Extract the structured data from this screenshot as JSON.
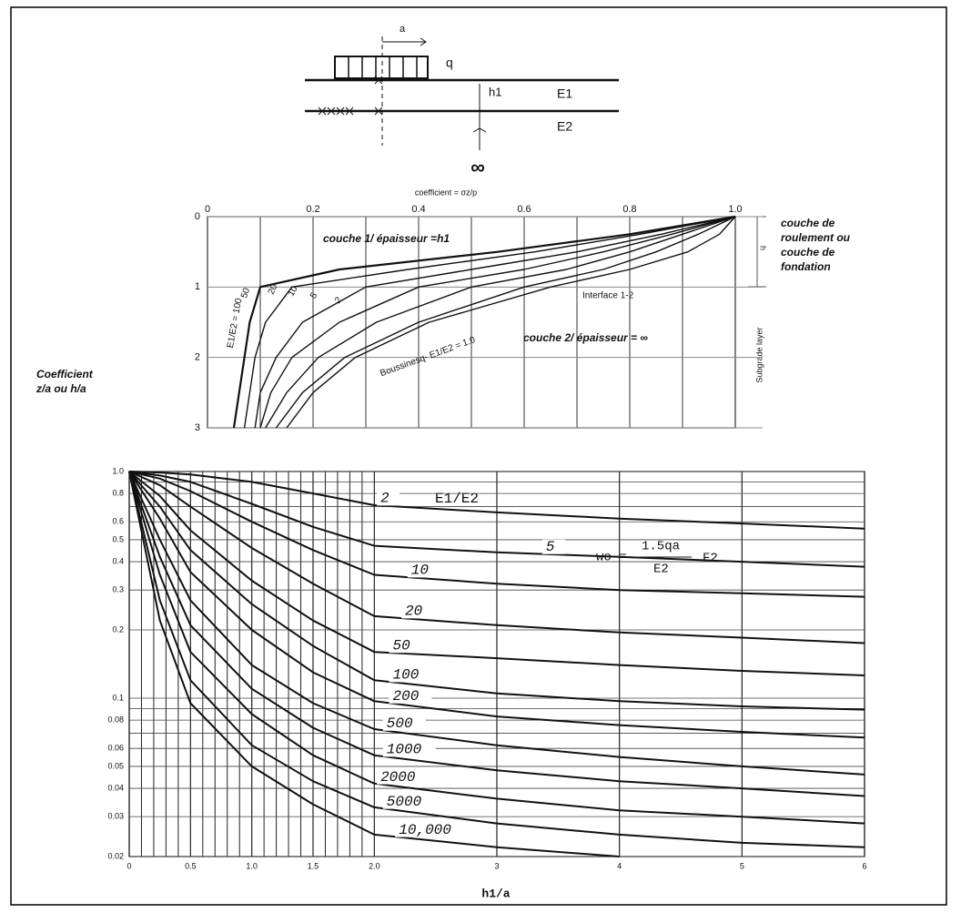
{
  "diagram": {
    "load_width": "a",
    "load": "q",
    "thickness": "h1",
    "layer1": "E1",
    "layer2": "E2",
    "depth": "∞"
  },
  "chart_data": [
    {
      "type": "line",
      "xlabel": "coefficient = σz/p",
      "ylabel": [
        "Coefficient",
        "z/a ou h/a"
      ],
      "side_label": [
        "couche de",
        "roulement ou",
        "couche de",
        "fondation"
      ],
      "side_thickness": "h",
      "subgrade_label": "Subgrade layer",
      "annotations": [
        "couche 1/ épaisseur =h1",
        "Interface 1-2",
        "couche 2/ épaisseur = ∞"
      ],
      "xlim": [
        0,
        1
      ],
      "xticks": [
        0,
        0.2,
        0.4,
        0.6,
        0.8,
        {
          "value": 1,
          "label": "1.0"
        }
      ],
      "xminorticks": [
        0.1,
        0.3,
        0.5,
        0.7,
        0.9
      ],
      "ylim": [
        0,
        3
      ],
      "yticks": [
        0,
        1,
        2,
        3
      ],
      "y_inverted": true,
      "grid": true,
      "color": "#111111",
      "z": [
        0,
        0.25,
        0.5,
        0.75,
        1,
        1.5,
        2,
        2.5,
        3
      ],
      "series": [
        {
          "name": "E1/E2 = 100",
          "values": [
            1,
            0.8,
            0.55,
            0.25,
            0.1,
            0.08,
            0.07,
            0.06,
            0.05
          ]
        },
        {
          "name": "50",
          "values": [
            1,
            0.82,
            0.62,
            0.38,
            0.16,
            0.11,
            0.09,
            0.08,
            0.07
          ]
        },
        {
          "name": "20",
          "values": [
            1,
            0.86,
            0.7,
            0.5,
            0.3,
            0.18,
            0.13,
            0.1,
            0.09
          ]
        },
        {
          "name": "10",
          "values": [
            1,
            0.88,
            0.75,
            0.6,
            0.4,
            0.25,
            0.16,
            0.12,
            0.1
          ]
        },
        {
          "name": "5",
          "values": [
            1,
            0.9,
            0.8,
            0.68,
            0.5,
            0.32,
            0.21,
            0.15,
            0.11
          ]
        },
        {
          "name": "2",
          "values": [
            1,
            0.93,
            0.85,
            0.75,
            0.6,
            0.4,
            0.26,
            0.18,
            0.13
          ]
        },
        {
          "name": "Boussinesq- E1/E2 = 1.0",
          "values": [
            1,
            0.97,
            0.91,
            0.8,
            0.65,
            0.42,
            0.28,
            0.2,
            0.15
          ]
        }
      ]
    },
    {
      "type": "line",
      "xlabel": "h1/a",
      "legend_title": "E1/E2",
      "formula": {
        "lhs": "wo =",
        "numerator": "1.5qa",
        "denominator": "E2",
        "factor": "F2"
      },
      "xlim": [
        0,
        6
      ],
      "xticks": [
        0,
        0.5,
        {
          "value": 1,
          "label": "1.0"
        },
        1.5,
        {
          "value": 2,
          "label": "2.0"
        },
        3,
        4,
        5,
        6
      ],
      "xminorticks": [
        0.1,
        0.2,
        0.3,
        0.4,
        0.6,
        0.7,
        0.8,
        0.9,
        1.1,
        1.2,
        1.3,
        1.4,
        1.6,
        1.7,
        1.8,
        1.9
      ],
      "ylim": [
        0.02,
        1
      ],
      "ylog": true,
      "yticks": [
        {
          "value": 1,
          "label": "1.0"
        },
        0.8,
        0.6,
        0.5,
        0.4,
        0.3,
        0.2,
        0.1,
        0.08,
        0.06,
        0.05,
        0.04,
        0.03,
        0.02
      ],
      "yminorticks": [
        0.9,
        0.7,
        0.09,
        0.07
      ],
      "grid": true,
      "color": "#111111",
      "x": [
        0,
        0.25,
        0.5,
        1,
        1.5,
        2,
        3,
        4,
        5,
        6
      ],
      "series": [
        {
          "name": "2",
          "values": [
            1,
            0.99,
            0.97,
            0.9,
            0.8,
            0.71,
            0.66,
            0.62,
            0.59,
            0.56
          ]
        },
        {
          "name": "5",
          "values": [
            1,
            0.96,
            0.9,
            0.72,
            0.57,
            0.47,
            0.44,
            0.42,
            0.4,
            0.38
          ]
        },
        {
          "name": "10",
          "values": [
            1,
            0.93,
            0.82,
            0.6,
            0.45,
            0.35,
            0.32,
            0.3,
            0.29,
            0.28
          ]
        },
        {
          "name": "20",
          "values": [
            1,
            0.87,
            0.7,
            0.46,
            0.32,
            0.23,
            0.21,
            0.195,
            0.185,
            0.175
          ]
        },
        {
          "name": "50",
          "values": [
            1,
            0.78,
            0.55,
            0.33,
            0.22,
            0.16,
            0.15,
            0.14,
            0.132,
            0.126
          ]
        },
        {
          "name": "100",
          "values": [
            1,
            0.7,
            0.45,
            0.26,
            0.17,
            0.12,
            0.105,
            0.097,
            0.092,
            0.089
          ]
        },
        {
          "name": "200",
          "values": [
            1,
            0.62,
            0.36,
            0.2,
            0.13,
            0.097,
            0.083,
            0.076,
            0.071,
            0.067
          ]
        },
        {
          "name": "500",
          "values": [
            1,
            0.5,
            0.27,
            0.14,
            0.095,
            0.073,
            0.062,
            0.055,
            0.05,
            0.046
          ]
        },
        {
          "name": "1000",
          "values": [
            1,
            0.42,
            0.21,
            0.11,
            0.074,
            0.056,
            0.048,
            0.043,
            0.04,
            0.037
          ]
        },
        {
          "name": "2000",
          "values": [
            1,
            0.35,
            0.16,
            0.085,
            0.056,
            0.042,
            0.036,
            0.032,
            0.03,
            0.028
          ]
        },
        {
          "name": "5000",
          "values": [
            1,
            0.27,
            0.12,
            0.062,
            0.043,
            0.033,
            0.028,
            0.025,
            0.023,
            0.022
          ]
        },
        {
          "name": "10,000",
          "values": [
            1,
            0.22,
            0.095,
            0.05,
            0.034,
            0.025,
            0.022,
            0.02,
            null,
            null
          ]
        }
      ]
    }
  ]
}
